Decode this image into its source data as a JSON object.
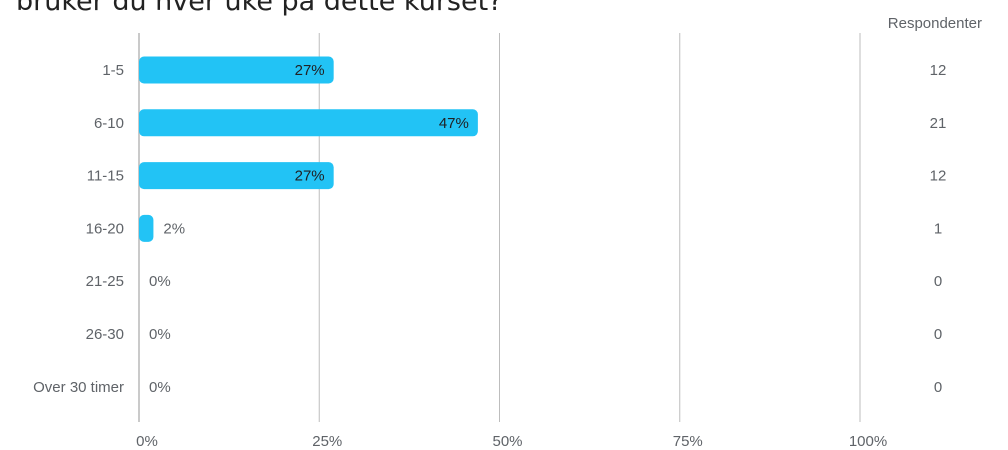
{
  "question": {
    "title": "bruker du hver uke på dette kurset?"
  },
  "colors": {
    "bar": "#22c3f5",
    "grid": "#bdbdbd",
    "text": "#5f6368"
  },
  "chart_data": {
    "type": "bar",
    "orientation": "horizontal",
    "categories": [
      "1-5",
      "6-10",
      "11-15",
      "16-20",
      "21-25",
      "26-30",
      "Over 30 timer"
    ],
    "values": [
      27,
      47,
      27,
      2,
      0,
      0,
      0
    ],
    "value_labels": [
      "27%",
      "47%",
      "27%",
      "2%",
      "0%",
      "0%",
      "0%"
    ],
    "responses": [
      12,
      21,
      12,
      1,
      0,
      0,
      0
    ],
    "responses_header": "Respondenter",
    "xlim": [
      0,
      100
    ],
    "xticks": [
      0,
      25,
      50,
      75,
      100
    ],
    "xtick_labels": [
      "0%",
      "25%",
      "50%",
      "75%",
      "100%"
    ],
    "grid": true,
    "unit": "%"
  }
}
